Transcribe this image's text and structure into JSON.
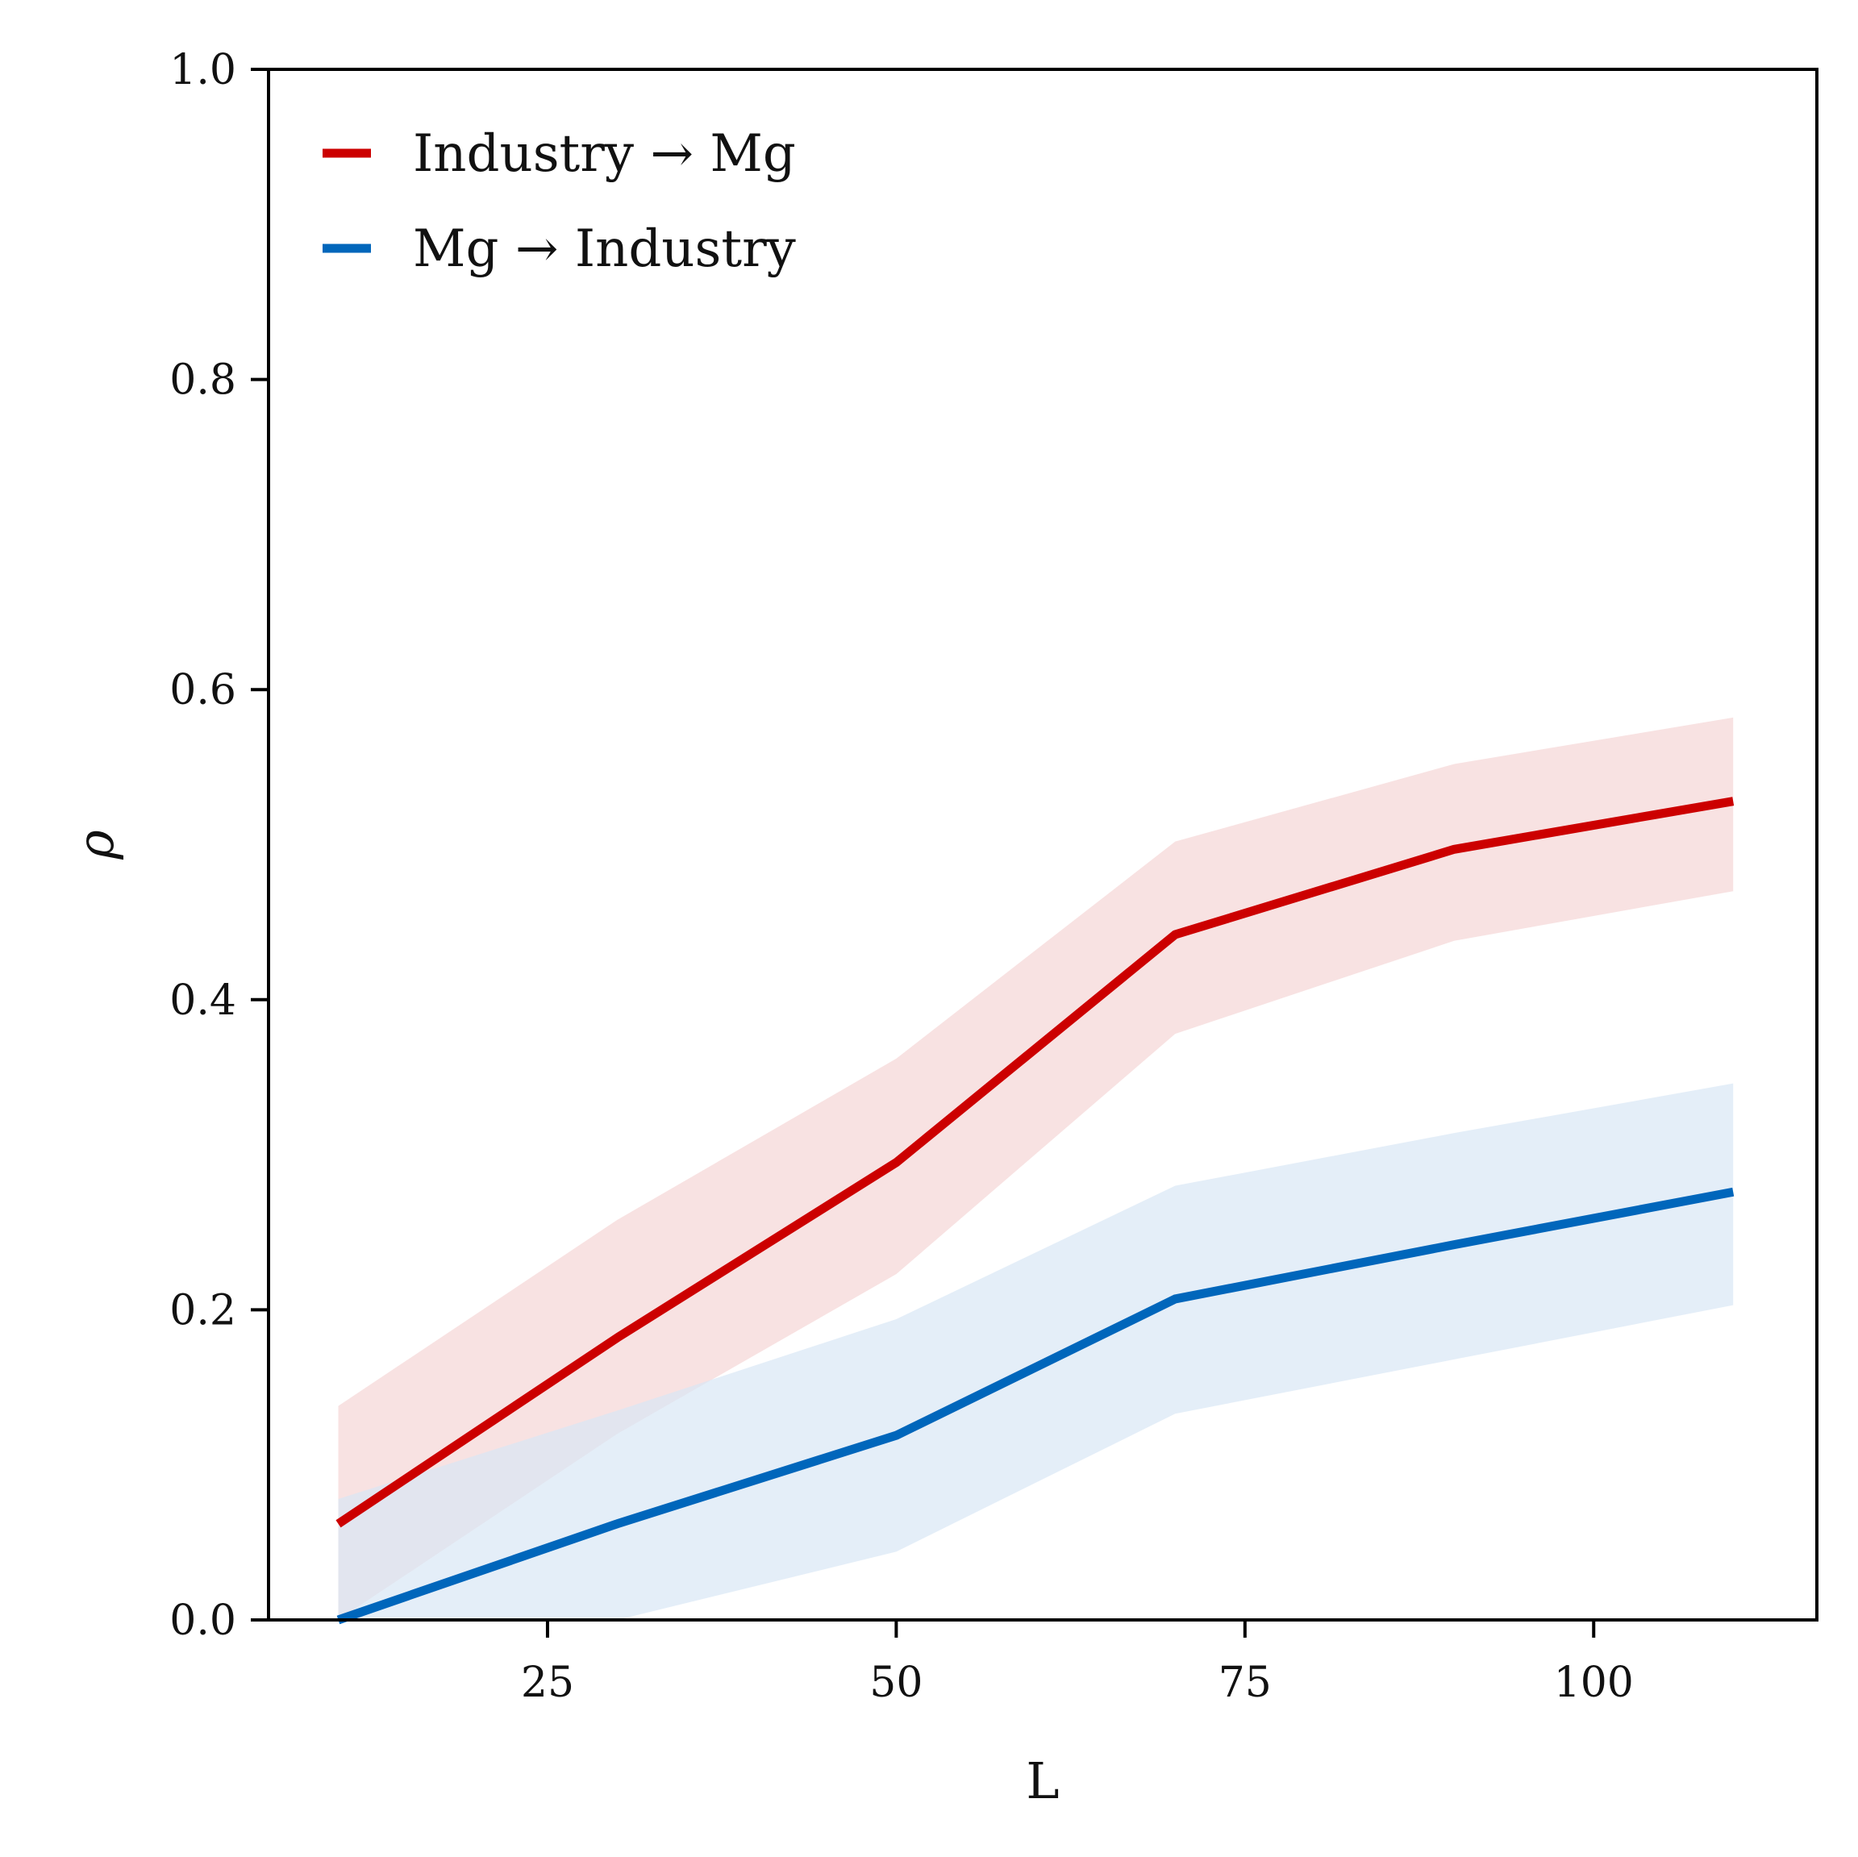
{
  "chart_data": {
    "type": "line",
    "xlabel": "L",
    "ylabel": "ρ",
    "xlim": [
      5,
      116
    ],
    "ylim": [
      0,
      1
    ],
    "x_ticks": [
      25,
      50,
      75,
      100
    ],
    "y_ticks": [
      0.0,
      0.2,
      0.4,
      0.6,
      0.8,
      1.0
    ],
    "grid": false,
    "legend_position": "top-left",
    "series": [
      {
        "name": "Industry → Mg",
        "color": "#cc0000",
        "band_color": "#f5d5d5",
        "x": [
          10,
          30,
          50,
          70,
          90,
          110
        ],
        "y": [
          0.062,
          0.182,
          0.295,
          0.442,
          0.497,
          0.528
        ],
        "lower": [
          0.0,
          0.12,
          0.223,
          0.378,
          0.438,
          0.47
        ],
        "upper": [
          0.138,
          0.258,
          0.362,
          0.502,
          0.552,
          0.582
        ]
      },
      {
        "name": "Mg → Industry",
        "color": "#0066bb",
        "band_color": "#d8e7f5",
        "x": [
          10,
          30,
          50,
          70,
          90,
          110
        ],
        "y": [
          0.0,
          0.062,
          0.119,
          0.207,
          0.242,
          0.276
        ],
        "lower": [
          0.0,
          0.0,
          0.044,
          0.133,
          0.168,
          0.203
        ],
        "upper": [
          0.078,
          0.135,
          0.194,
          0.28,
          0.314,
          0.346
        ]
      }
    ]
  }
}
